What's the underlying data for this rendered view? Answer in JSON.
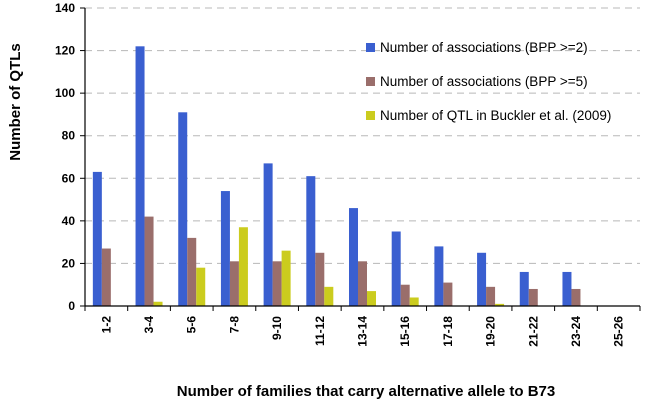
{
  "chart_data": {
    "type": "bar",
    "title": "",
    "xlabel": "Number of families that carry alternative allele to B73",
    "ylabel": "Number of QTLs",
    "ylim": [
      0,
      140
    ],
    "yticks": [
      0,
      20,
      40,
      60,
      80,
      100,
      120,
      140
    ],
    "grid": true,
    "legend_position": "top-right",
    "categories": [
      "1-2",
      "3-4",
      "5-6",
      "7-8",
      "9-10",
      "11-12",
      "13-14",
      "15-16",
      "17-18",
      "19-20",
      "21-22",
      "23-24",
      "25-26"
    ],
    "series": [
      {
        "name": "Number of associations (BPP >=2)",
        "color": "#3a5fd0",
        "values": [
          63,
          122,
          91,
          54,
          67,
          61,
          46,
          35,
          28,
          25,
          16,
          16,
          0
        ]
      },
      {
        "name": "Number of associations (BPP >=5)",
        "color": "#9a6e6b",
        "values": [
          27,
          42,
          32,
          21,
          21,
          25,
          21,
          10,
          11,
          9,
          8,
          8,
          0
        ]
      },
      {
        "name": "Number of QTL in Buckler et al. (2009)",
        "color": "#cbcc1e",
        "values": [
          0,
          2,
          18,
          37,
          26,
          9,
          7,
          4,
          0,
          1,
          0,
          0,
          0
        ]
      }
    ]
  }
}
